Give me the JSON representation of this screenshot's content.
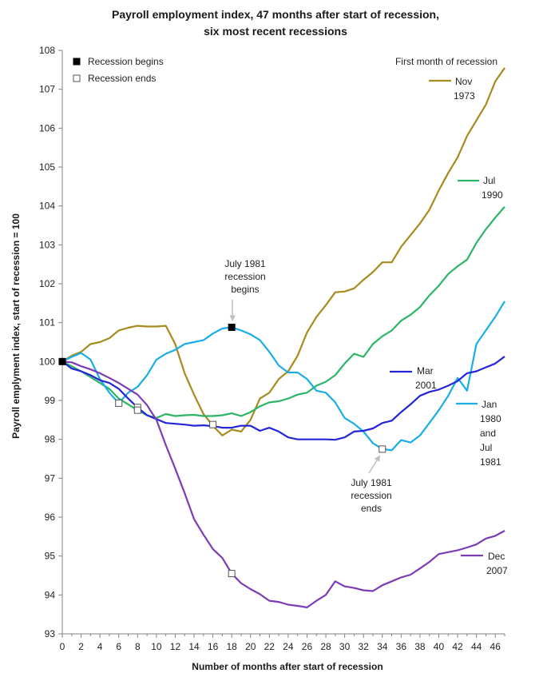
{
  "chart_data": {
    "type": "line",
    "title": [
      "Payroll employment index, 47 months after start of recession,",
      "six most recent recessions"
    ],
    "xlabel": "Number of months after start of recession",
    "ylabel": "Payroll emplyment index, start of recession = 100",
    "xlim": [
      0,
      47
    ],
    "ylim": [
      93,
      108
    ],
    "xticks": [
      "0",
      "2",
      "4",
      "6",
      "8",
      "10",
      "12",
      "14",
      "16",
      "18",
      "20",
      "22",
      "24",
      "26",
      "28",
      "30",
      "32",
      "34",
      "36",
      "38",
      "40",
      "42",
      "44",
      "46"
    ],
    "yticks": [
      "93",
      "94",
      "95",
      "96",
      "97",
      "98",
      "99",
      "100",
      "101",
      "102",
      "103",
      "104",
      "105",
      "106",
      "107",
      "108"
    ],
    "grid": false,
    "legend_title": "First month of recession",
    "legend": [
      {
        "marker": "filled-square",
        "label": "Recession begins"
      },
      {
        "marker": "open-square",
        "label": "Recession ends"
      }
    ],
    "series": [
      {
        "label_lines": [
          "Nov",
          "1973"
        ],
        "color": "#A68B1E",
        "values": [
          100,
          100.15,
          100.25,
          100.45,
          100.5,
          100.6,
          100.8,
          100.87,
          100.92,
          100.9,
          100.9,
          100.92,
          100.45,
          99.7,
          99.15,
          98.65,
          98.35,
          98.1,
          98.25,
          98.2,
          98.5,
          99.05,
          99.2,
          99.55,
          99.75,
          100.15,
          100.75,
          101.15,
          101.45,
          101.78,
          101.8,
          101.88,
          102.1,
          102.3,
          102.55,
          102.55,
          102.95,
          103.25,
          103.55,
          103.9,
          104.4,
          104.85,
          105.25,
          105.8,
          106.2,
          106.6,
          107.2,
          107.55
        ]
      },
      {
        "label_lines": [
          "Jul",
          "1990"
        ],
        "color": "#2BB566",
        "values": [
          100,
          99.88,
          99.75,
          99.6,
          99.45,
          99.3,
          99.05,
          98.9,
          98.75,
          98.62,
          98.55,
          98.65,
          98.6,
          98.62,
          98.63,
          98.6,
          98.6,
          98.62,
          98.67,
          98.6,
          98.7,
          98.85,
          98.95,
          98.98,
          99.05,
          99.15,
          99.2,
          99.38,
          99.48,
          99.65,
          99.95,
          100.2,
          100.12,
          100.45,
          100.65,
          100.8,
          101.05,
          101.2,
          101.4,
          101.7,
          101.95,
          102.25,
          102.45,
          102.62,
          103.05,
          103.4,
          103.7,
          103.98
        ]
      },
      {
        "label_lines": [
          "Jan",
          "1980",
          "and",
          "Jul",
          "1981"
        ],
        "color": "#1AAEE8",
        "values": [
          100,
          100.12,
          100.22,
          100.05,
          99.55,
          99.2,
          98.93,
          99.2,
          99.35,
          99.65,
          100.05,
          100.2,
          100.3,
          100.45,
          100.5,
          100.55,
          100.72,
          100.85,
          100.88,
          100.8,
          100.7,
          100.55,
          100.25,
          99.9,
          99.72,
          99.72,
          99.55,
          99.25,
          99.2,
          98.95,
          98.55,
          98.4,
          98.2,
          97.9,
          97.75,
          97.72,
          97.98,
          97.92,
          98.1,
          98.42,
          98.75,
          99.12,
          99.58,
          99.25,
          100.45,
          100.8,
          101.15,
          101.55
        ]
      },
      {
        "label_lines": [
          "Mar",
          "2001"
        ],
        "color": "#2424D8",
        "values": [
          100,
          99.82,
          99.75,
          99.65,
          99.52,
          99.45,
          99.3,
          99.05,
          98.82,
          98.62,
          98.52,
          98.42,
          98.4,
          98.38,
          98.35,
          98.36,
          98.34,
          98.3,
          98.3,
          98.35,
          98.35,
          98.22,
          98.3,
          98.2,
          98.05,
          98.0,
          98.0,
          98.0,
          98.0,
          97.99,
          98.05,
          98.2,
          98.22,
          98.28,
          98.42,
          98.48,
          98.7,
          98.9,
          99.12,
          99.22,
          99.28,
          99.38,
          99.5,
          99.7,
          99.75,
          99.85,
          99.95,
          100.13
        ]
      },
      {
        "label_lines": [
          "Dec",
          "2007"
        ],
        "color": "#7D3CB5",
        "values": [
          100,
          99.98,
          99.88,
          99.8,
          99.7,
          99.58,
          99.45,
          99.3,
          99.15,
          98.88,
          98.5,
          97.85,
          97.25,
          96.62,
          95.95,
          95.55,
          95.18,
          94.95,
          94.55,
          94.3,
          94.15,
          94.02,
          93.85,
          93.82,
          93.75,
          93.72,
          93.68,
          93.85,
          94.0,
          94.35,
          94.22,
          94.18,
          94.12,
          94.1,
          94.25,
          94.35,
          94.45,
          94.52,
          94.68,
          94.85,
          95.05,
          95.1,
          95.15,
          95.22,
          95.3,
          95.45,
          95.52,
          95.65
        ]
      }
    ],
    "markers": [
      {
        "type": "filled-square",
        "x": 0,
        "y": 100
      },
      {
        "type": "filled-square",
        "x": 18,
        "y": 100.88
      },
      {
        "type": "open-square",
        "x": 6,
        "y": 98.93
      },
      {
        "type": "open-square",
        "x": 8,
        "y": 98.82
      },
      {
        "type": "open-square",
        "x": 8,
        "y": 98.75
      },
      {
        "type": "open-square",
        "x": 16,
        "y": 98.38
      },
      {
        "type": "open-square",
        "x": 18,
        "y": 94.55
      },
      {
        "type": "open-square",
        "x": 34,
        "y": 97.75
      }
    ],
    "annotations": [
      {
        "lines": [
          "July 1981",
          "recession",
          "begins"
        ],
        "arrow_to": [
          18,
          100.88
        ]
      },
      {
        "lines": [
          "July 1981",
          "recession",
          "ends"
        ],
        "arrow_to": [
          34,
          97.75
        ]
      }
    ]
  }
}
